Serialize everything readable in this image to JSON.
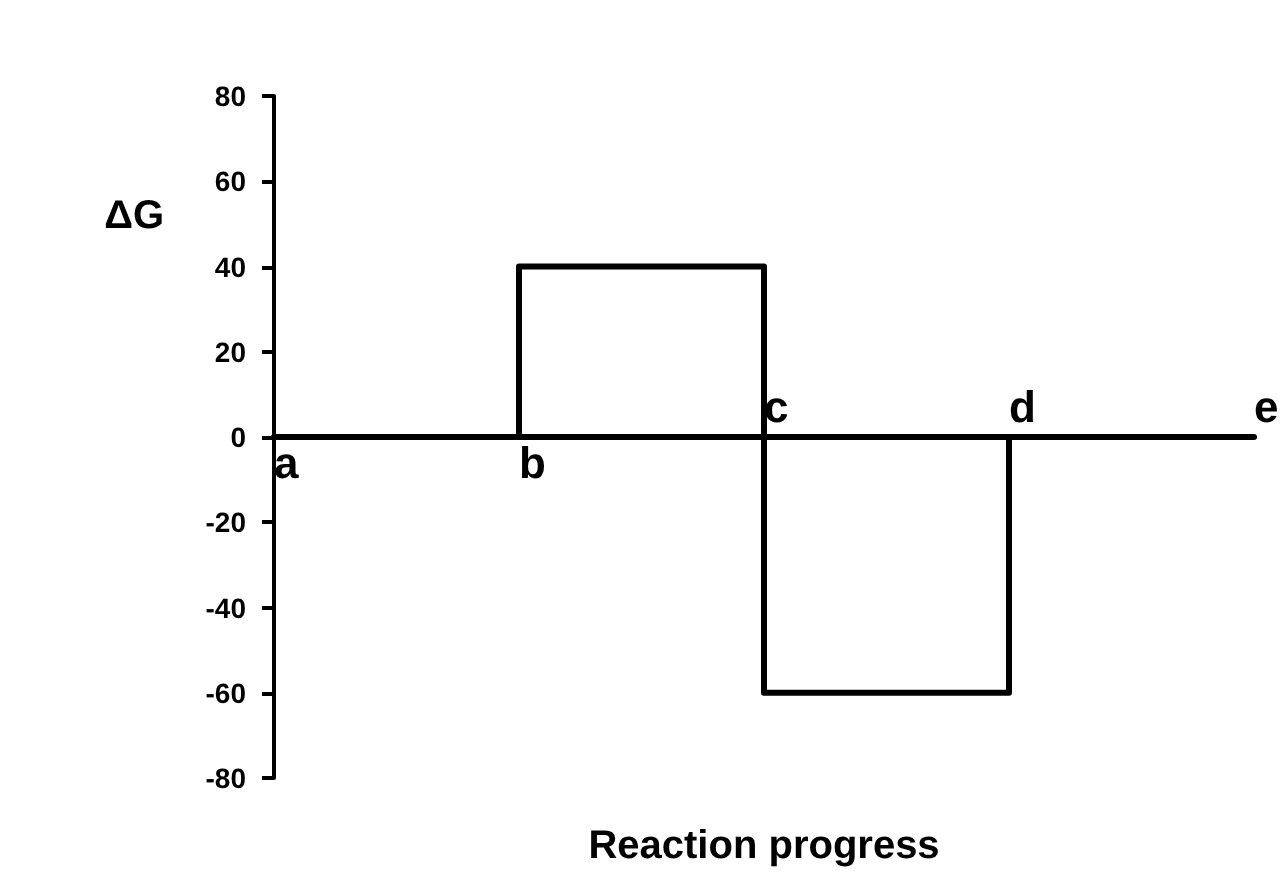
{
  "chart_data": {
    "type": "step",
    "xlabel": "Reaction progress",
    "ylabel": "ΔG",
    "categories": [
      "a",
      "b",
      "c",
      "d",
      "e"
    ],
    "series": [
      {
        "color": "#000000",
        "values": [
          0,
          40,
          -60,
          0,
          0
        ]
      }
    ],
    "ylim": [
      -80,
      80
    ],
    "yticks": [
      -80,
      -60,
      -40,
      -20,
      0,
      20,
      40,
      60,
      80
    ],
    "grid": false,
    "marker": "none",
    "line_style": "solid"
  }
}
